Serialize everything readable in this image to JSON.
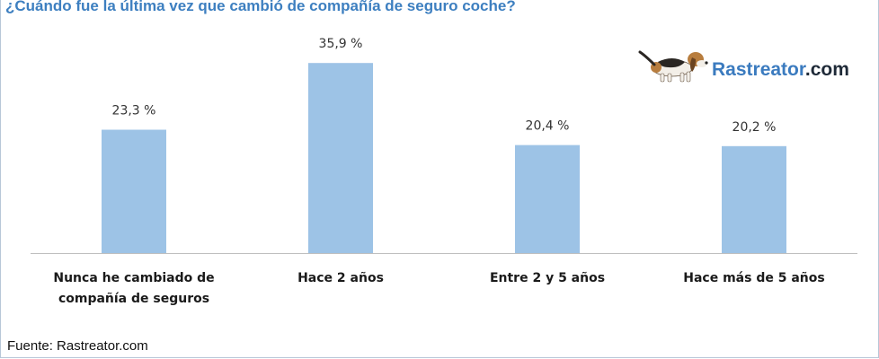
{
  "title": "¿Cuándo fue la última vez que cambió de compañía de seguro coche?",
  "logo": {
    "brand": "Rastreator",
    "tld": ".com",
    "icon": "basset-dog-icon"
  },
  "source": "Fuente: Rastreator.com",
  "colors": {
    "bar": "#9dc3e6",
    "title": "#3d7fc0",
    "axis": "#bfbfbf"
  },
  "chart_data": {
    "type": "bar",
    "categories": [
      [
        "Nunca he cambiado de",
        "compañía de seguros"
      ],
      [
        "Hace 2 años"
      ],
      [
        "Entre 2 y 5 años"
      ],
      [
        "Hace más de 5 años"
      ]
    ],
    "values": [
      23.3,
      35.9,
      20.4,
      20.2
    ],
    "value_labels": [
      "23,3 %",
      "35,9  %",
      "20,4 %",
      "20,2 %"
    ],
    "ylim": [
      0,
      40
    ],
    "grid": false,
    "legend": "none"
  }
}
